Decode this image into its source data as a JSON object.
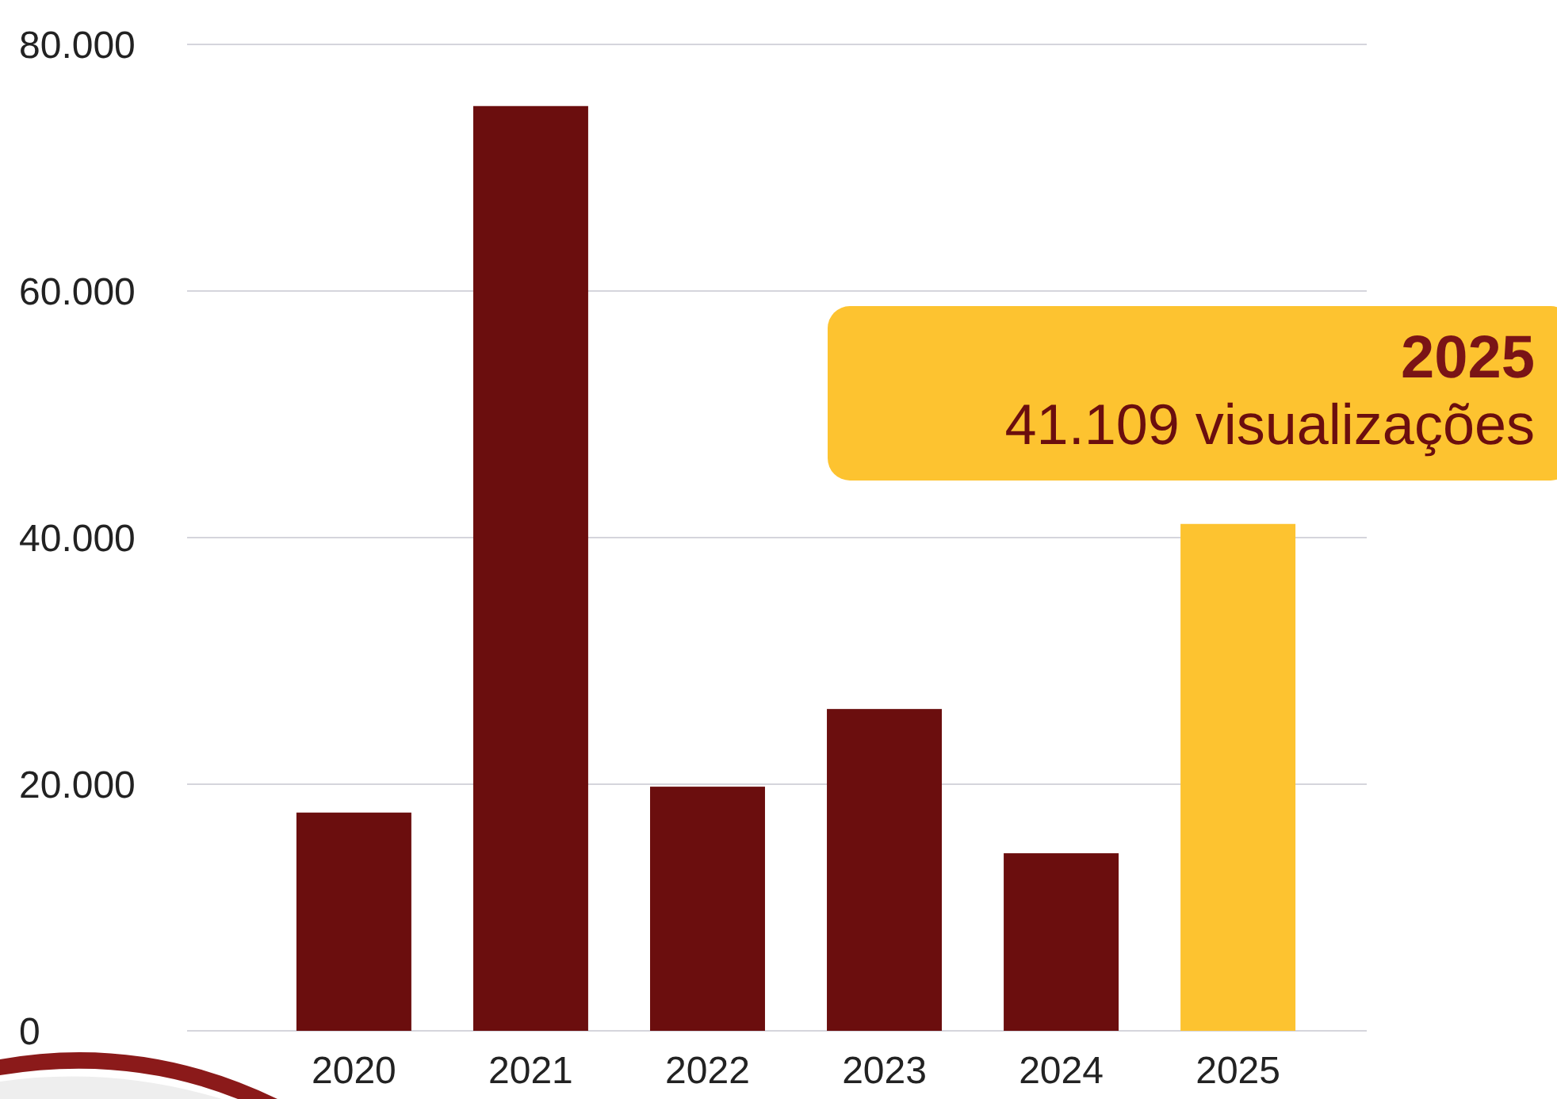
{
  "chart_data": {
    "type": "bar",
    "categories": [
      "2020",
      "2021",
      "2022",
      "2023",
      "2024",
      "2025"
    ],
    "values": [
      17700,
      75000,
      19800,
      26100,
      14400,
      41109
    ],
    "colors": [
      "#6b0e0e",
      "#6b0e0e",
      "#6b0e0e",
      "#6b0e0e",
      "#6b0e0e",
      "#fdc330"
    ],
    "ylim": [
      0,
      80000
    ],
    "yticks": [
      0,
      {
        "value": 20000,
        "label": "20.000"
      },
      {
        "value": 40000,
        "label": "40.000"
      },
      {
        "value": 60000,
        "label": "60.000"
      },
      {
        "value": 80000,
        "label": "80.000"
      }
    ],
    "grid": "y",
    "annotations": [
      "2025",
      "41.109 visualizações"
    ]
  }
}
